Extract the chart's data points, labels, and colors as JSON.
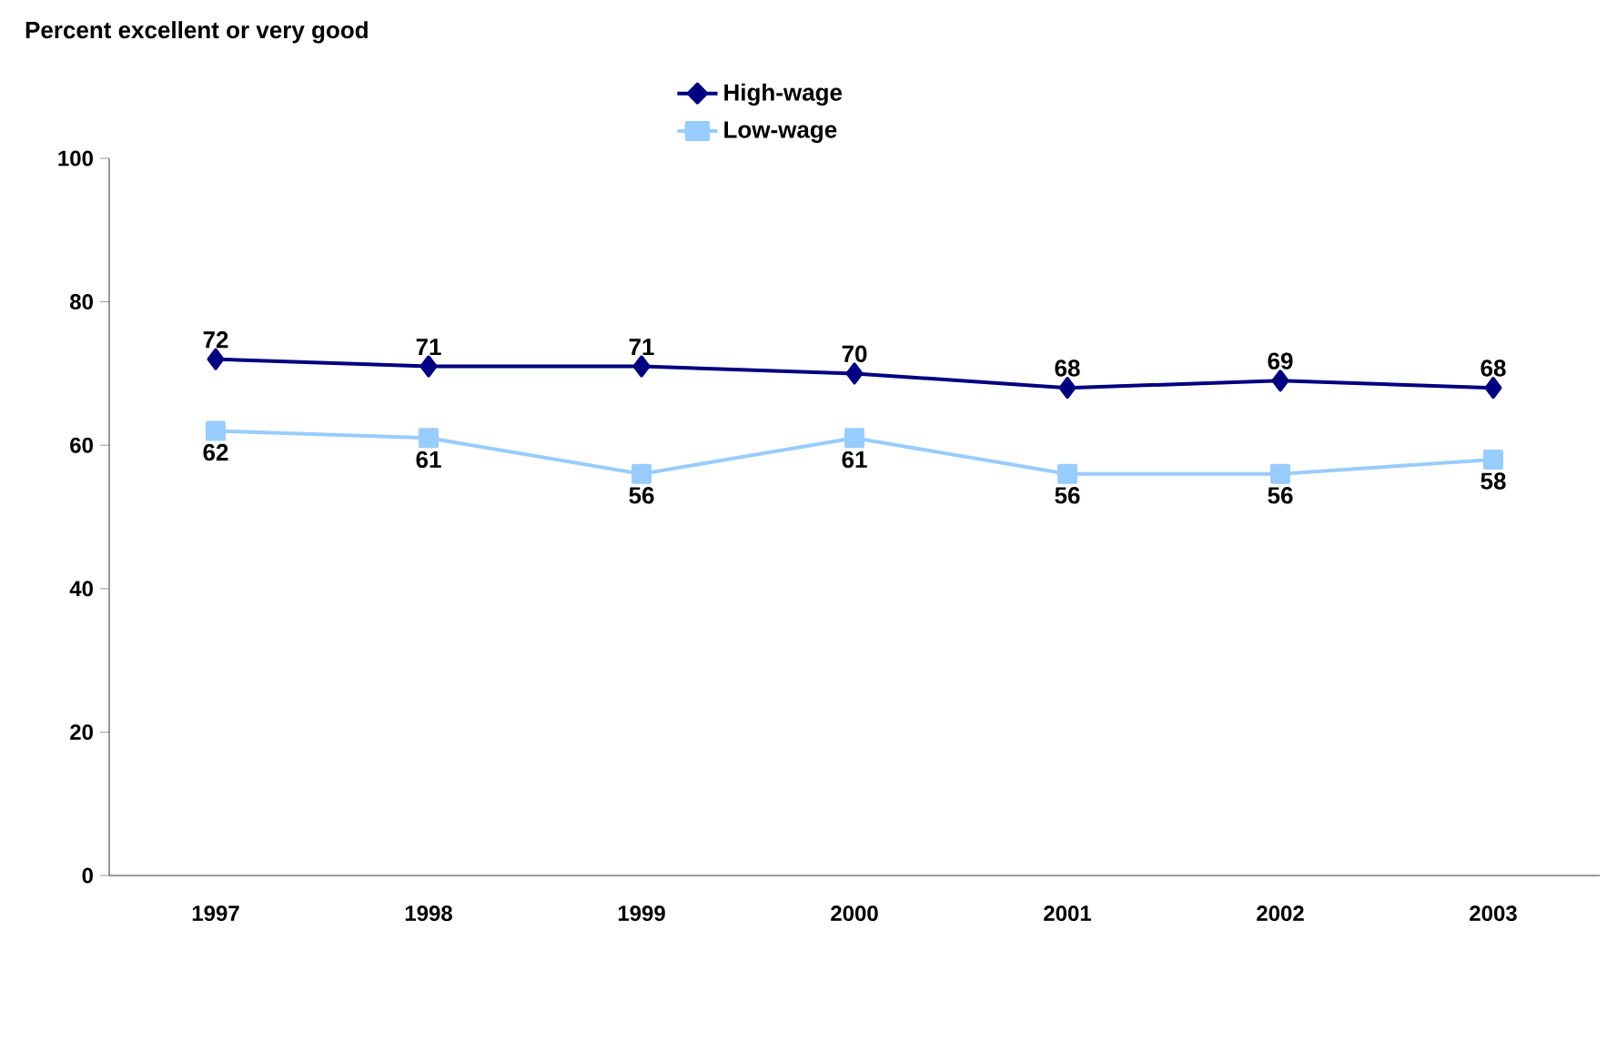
{
  "chart_data": {
    "type": "line",
    "title": "Percent excellent or very good",
    "categories": [
      "1997",
      "1998",
      "1999",
      "2000",
      "2001",
      "2002",
      "2003"
    ],
    "series": [
      {
        "name": "High-wage",
        "color": "#000080",
        "marker": "diamond",
        "values": [
          72,
          71,
          71,
          70,
          68,
          69,
          68
        ]
      },
      {
        "name": "Low-wage",
        "color": "#99ccff",
        "marker": "square",
        "values": [
          62,
          61,
          56,
          61,
          56,
          56,
          58
        ]
      }
    ],
    "ylim": [
      0,
      100
    ],
    "yticks": [
      0,
      20,
      40,
      60,
      80,
      100
    ],
    "data_labels": true,
    "legend": "top",
    "line_style": "solid"
  }
}
